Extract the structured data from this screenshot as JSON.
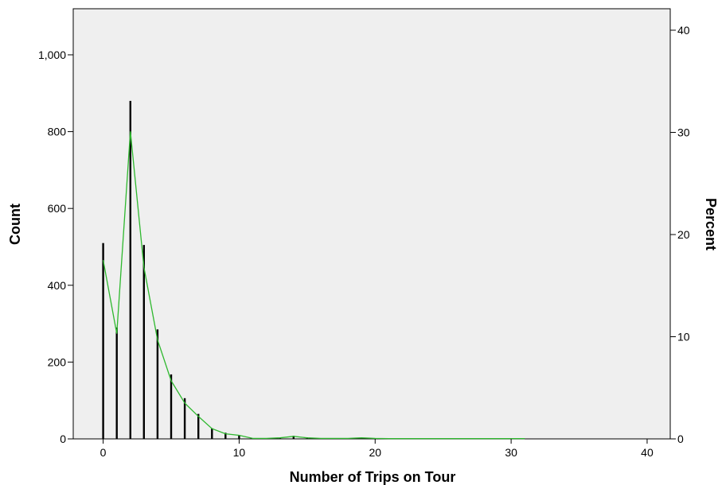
{
  "chart_data": {
    "type": "bar",
    "title": "",
    "xlabel": "Number of Trips on Tour",
    "ylabel_left": "Count",
    "ylabel_right": "Percent",
    "xlim": [
      -2.2,
      41.7
    ],
    "ylim_left": [
      0,
      1120
    ],
    "ylim_right": [
      0,
      42.1
    ],
    "x_ticks": [
      0,
      10,
      20,
      30,
      40
    ],
    "y_ticks_left": [
      0,
      200,
      400,
      600,
      800,
      1000
    ],
    "y_ticks_left_labels": [
      "0",
      "200",
      "400",
      "600",
      "800",
      "1,000"
    ],
    "y_ticks_right": [
      0,
      10,
      20,
      30,
      40
    ],
    "grid": false,
    "background": "#efefef",
    "bar_color": "#000000",
    "line_color": "#2eb82e",
    "series": [
      {
        "kind": "count_bars",
        "x": [
          0,
          1,
          2,
          3,
          4,
          5,
          6,
          7,
          8,
          9,
          10,
          11,
          12,
          13,
          14,
          15,
          16,
          17,
          18,
          19,
          20,
          21,
          22,
          23,
          24,
          25,
          26,
          27,
          28,
          29,
          30,
          31
        ],
        "values": [
          510,
          290,
          880,
          505,
          285,
          168,
          106,
          65,
          28,
          16,
          10,
          2,
          2,
          3,
          8,
          4,
          2,
          2,
          1,
          3,
          2,
          1,
          1,
          1,
          1,
          1,
          1,
          1,
          1,
          1,
          1,
          1
        ]
      },
      {
        "kind": "percent_line",
        "x": [
          0,
          1,
          2,
          3,
          4,
          5,
          6,
          7,
          8,
          9,
          10,
          11,
          12,
          13,
          14,
          15,
          16,
          17,
          18,
          19,
          20,
          21,
          22,
          23,
          24,
          25,
          26,
          27,
          28,
          29,
          30,
          31
        ],
        "values": [
          17.5,
          10.3,
          30.1,
          16.8,
          9.7,
          5.7,
          3.5,
          2.2,
          1.0,
          0.5,
          0.35,
          0.05,
          0.05,
          0.1,
          0.25,
          0.1,
          0.05,
          0.05,
          0.05,
          0.1,
          0.05,
          0.03,
          0.03,
          0.03,
          0.03,
          0.03,
          0.03,
          0.03,
          0.03,
          0.03,
          0.03,
          0.03
        ]
      }
    ]
  }
}
